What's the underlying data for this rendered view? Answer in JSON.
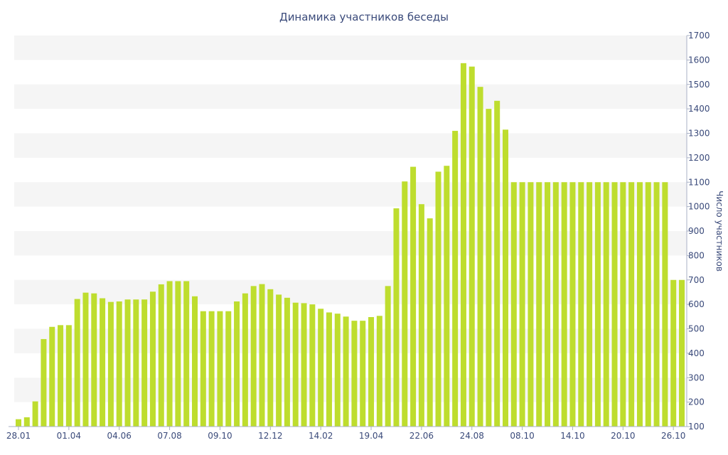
{
  "chart_data": {
    "type": "bar",
    "title": "Динамика участников беседы",
    "ylabel": "Число участников",
    "xlabel": "",
    "ylim": [
      100,
      1700
    ],
    "y_ticks": [
      100,
      200,
      300,
      400,
      500,
      600,
      700,
      800,
      900,
      1000,
      1100,
      1200,
      1300,
      1400,
      1500,
      1600,
      1700
    ],
    "y_axis_side": "right",
    "grid": "alternating horizontal bands",
    "x_tick_labels": [
      {
        "index": 0,
        "label": "28.01"
      },
      {
        "index": 6,
        "label": "01.04"
      },
      {
        "index": 12,
        "label": "04.06"
      },
      {
        "index": 18,
        "label": "07.08"
      },
      {
        "index": 24,
        "label": "09.10"
      },
      {
        "index": 30,
        "label": "12.12"
      },
      {
        "index": 36,
        "label": "14.02"
      },
      {
        "index": 42,
        "label": "19.04"
      },
      {
        "index": 48,
        "label": "22.06"
      },
      {
        "index": 54,
        "label": "24.08"
      },
      {
        "index": 60,
        "label": "08.10"
      },
      {
        "index": 66,
        "label": "14.10"
      },
      {
        "index": 72,
        "label": "20.10"
      },
      {
        "index": 78,
        "label": "26.10"
      }
    ],
    "values": [
      130,
      138,
      203,
      458,
      508,
      515,
      515,
      622,
      648,
      645,
      625,
      610,
      612,
      620,
      620,
      620,
      652,
      682,
      695,
      695,
      695,
      633,
      572,
      572,
      572,
      572,
      612,
      645,
      675,
      683,
      662,
      640,
      627,
      607,
      605,
      600,
      582,
      567,
      562,
      550,
      533,
      533,
      548,
      553,
      675,
      993,
      1103,
      1163,
      1010,
      952,
      1143,
      1167,
      1310,
      1587,
      1573,
      1490,
      1400,
      1433,
      1315,
      1100,
      1100,
      1100,
      1100,
      1100,
      1100,
      1100,
      1100,
      1100,
      1100,
      1100,
      1100,
      1100,
      1100,
      1100,
      1100,
      1100,
      1100,
      1100,
      700,
      700
    ],
    "colors": {
      "bar": "#bedd2e",
      "band": "#f5f5f5",
      "text": "#3a4a7a",
      "axis": "#a9b0c6"
    }
  }
}
